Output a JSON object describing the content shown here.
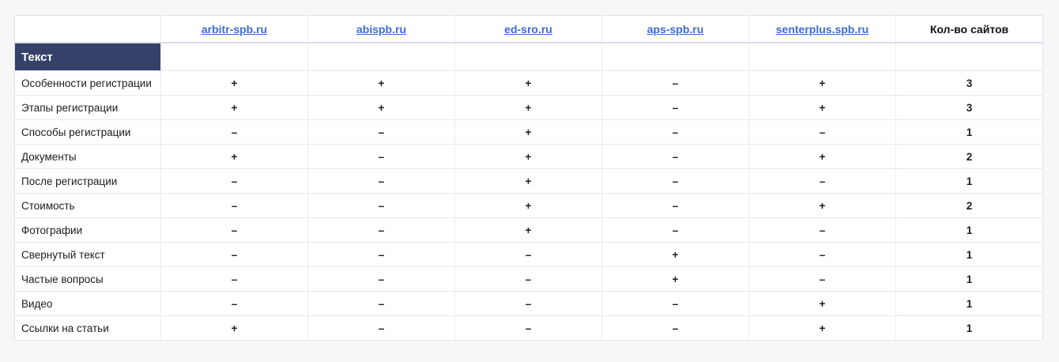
{
  "page": {
    "background_color": "#f7f7f8",
    "accent_navy": "#354169",
    "link_color": "#3e6ad8"
  },
  "table": {
    "columns": [
      {
        "label": "",
        "type": "corner"
      },
      {
        "label": "arbitr-spb.ru",
        "type": "link"
      },
      {
        "label": "abispb.ru",
        "type": "link"
      },
      {
        "label": "ed-sro.ru",
        "type": "link"
      },
      {
        "label": "aps-spb.ru",
        "type": "link"
      },
      {
        "label": "senterplus.spb.ru",
        "type": "link"
      },
      {
        "label": "Кол-во сайтов",
        "type": "text"
      }
    ],
    "section": {
      "label": "Текст"
    },
    "rows": [
      {
        "label": "Особенности регистрации",
        "values": [
          "+",
          "+",
          "+",
          "–",
          "+"
        ],
        "count": "3"
      },
      {
        "label": "Этапы регистрации",
        "values": [
          "+",
          "+",
          "+",
          "–",
          "+"
        ],
        "count": "3"
      },
      {
        "label": "Способы регистрации",
        "values": [
          "–",
          "–",
          "+",
          "–",
          "–"
        ],
        "count": "1"
      },
      {
        "label": "Документы",
        "values": [
          "+",
          "–",
          "+",
          "–",
          "+"
        ],
        "count": "2"
      },
      {
        "label": "После регистрации",
        "values": [
          "–",
          "–",
          "+",
          "–",
          "–"
        ],
        "count": "1"
      },
      {
        "label": "Стоимость",
        "values": [
          "–",
          "–",
          "+",
          "–",
          "+"
        ],
        "count": "2"
      },
      {
        "label": "Фотографии",
        "values": [
          "–",
          "–",
          "+",
          "–",
          "–"
        ],
        "count": "1"
      },
      {
        "label": "Свернутый текст",
        "values": [
          "–",
          "–",
          "–",
          "+",
          "–"
        ],
        "count": "1"
      },
      {
        "label": "Частые вопросы",
        "values": [
          "–",
          "–",
          "–",
          "+",
          "–"
        ],
        "count": "1"
      },
      {
        "label": "Видео",
        "values": [
          "–",
          "–",
          "–",
          "–",
          "+"
        ],
        "count": "1"
      },
      {
        "label": "Ссылки на статьи",
        "values": [
          "+",
          "–",
          "–",
          "–",
          "+"
        ],
        "count": "1"
      }
    ]
  }
}
